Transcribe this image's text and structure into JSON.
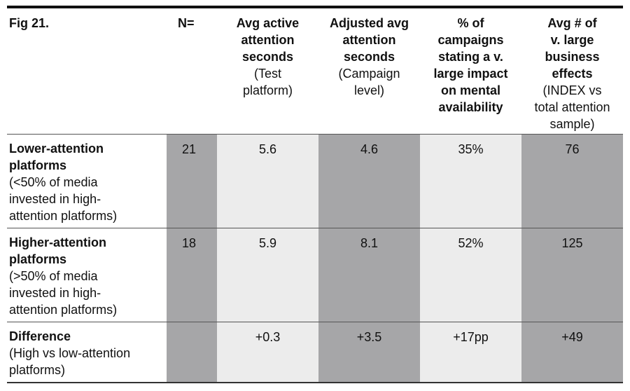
{
  "table": {
    "fig_label": "Fig 21.",
    "headers": {
      "n": "N=",
      "col1": {
        "bold": [
          "Avg active",
          "attention",
          "seconds"
        ],
        "normal": [
          "(Test",
          "platform)"
        ]
      },
      "col2": {
        "bold": [
          "Adjusted avg",
          "attention",
          "seconds"
        ],
        "normal": [
          "(Campaign",
          "level)"
        ]
      },
      "col3": {
        "bold": [
          "% of",
          "campaigns",
          "stating a v.",
          "large impact",
          "on mental",
          "availability"
        ],
        "normal": []
      },
      "col4": {
        "bold": [
          "Avg # of",
          "v. large",
          "business",
          "effects"
        ],
        "normal": [
          "(INDEX vs",
          "total attention",
          "sample)"
        ]
      }
    },
    "rows": [
      {
        "label_bold": [
          "Lower-attention",
          "platforms"
        ],
        "label_normal": [
          "(<50% of media",
          "invested in high-",
          "attention platforms)"
        ],
        "n": "21",
        "v1": "5.6",
        "v2": "4.6",
        "v3": "35%",
        "v4": "76"
      },
      {
        "label_bold": [
          "Higher-attention",
          "platforms"
        ],
        "label_normal": [
          "(>50% of media",
          "invested in high-",
          "attention platforms)"
        ],
        "n": "18",
        "v1": "5.9",
        "v2": "8.1",
        "v3": "52%",
        "v4": "125"
      },
      {
        "label_bold": [
          "Difference"
        ],
        "label_normal": [
          "(High vs low-attention",
          "platforms)"
        ],
        "n": "",
        "v1": "+0.3",
        "v2": "+3.5",
        "v3": "+17pp",
        "v4": "+49"
      }
    ]
  },
  "colors": {
    "dark_column": "#a6a6a8",
    "light_column": "#ececec",
    "rule": "#111111"
  }
}
